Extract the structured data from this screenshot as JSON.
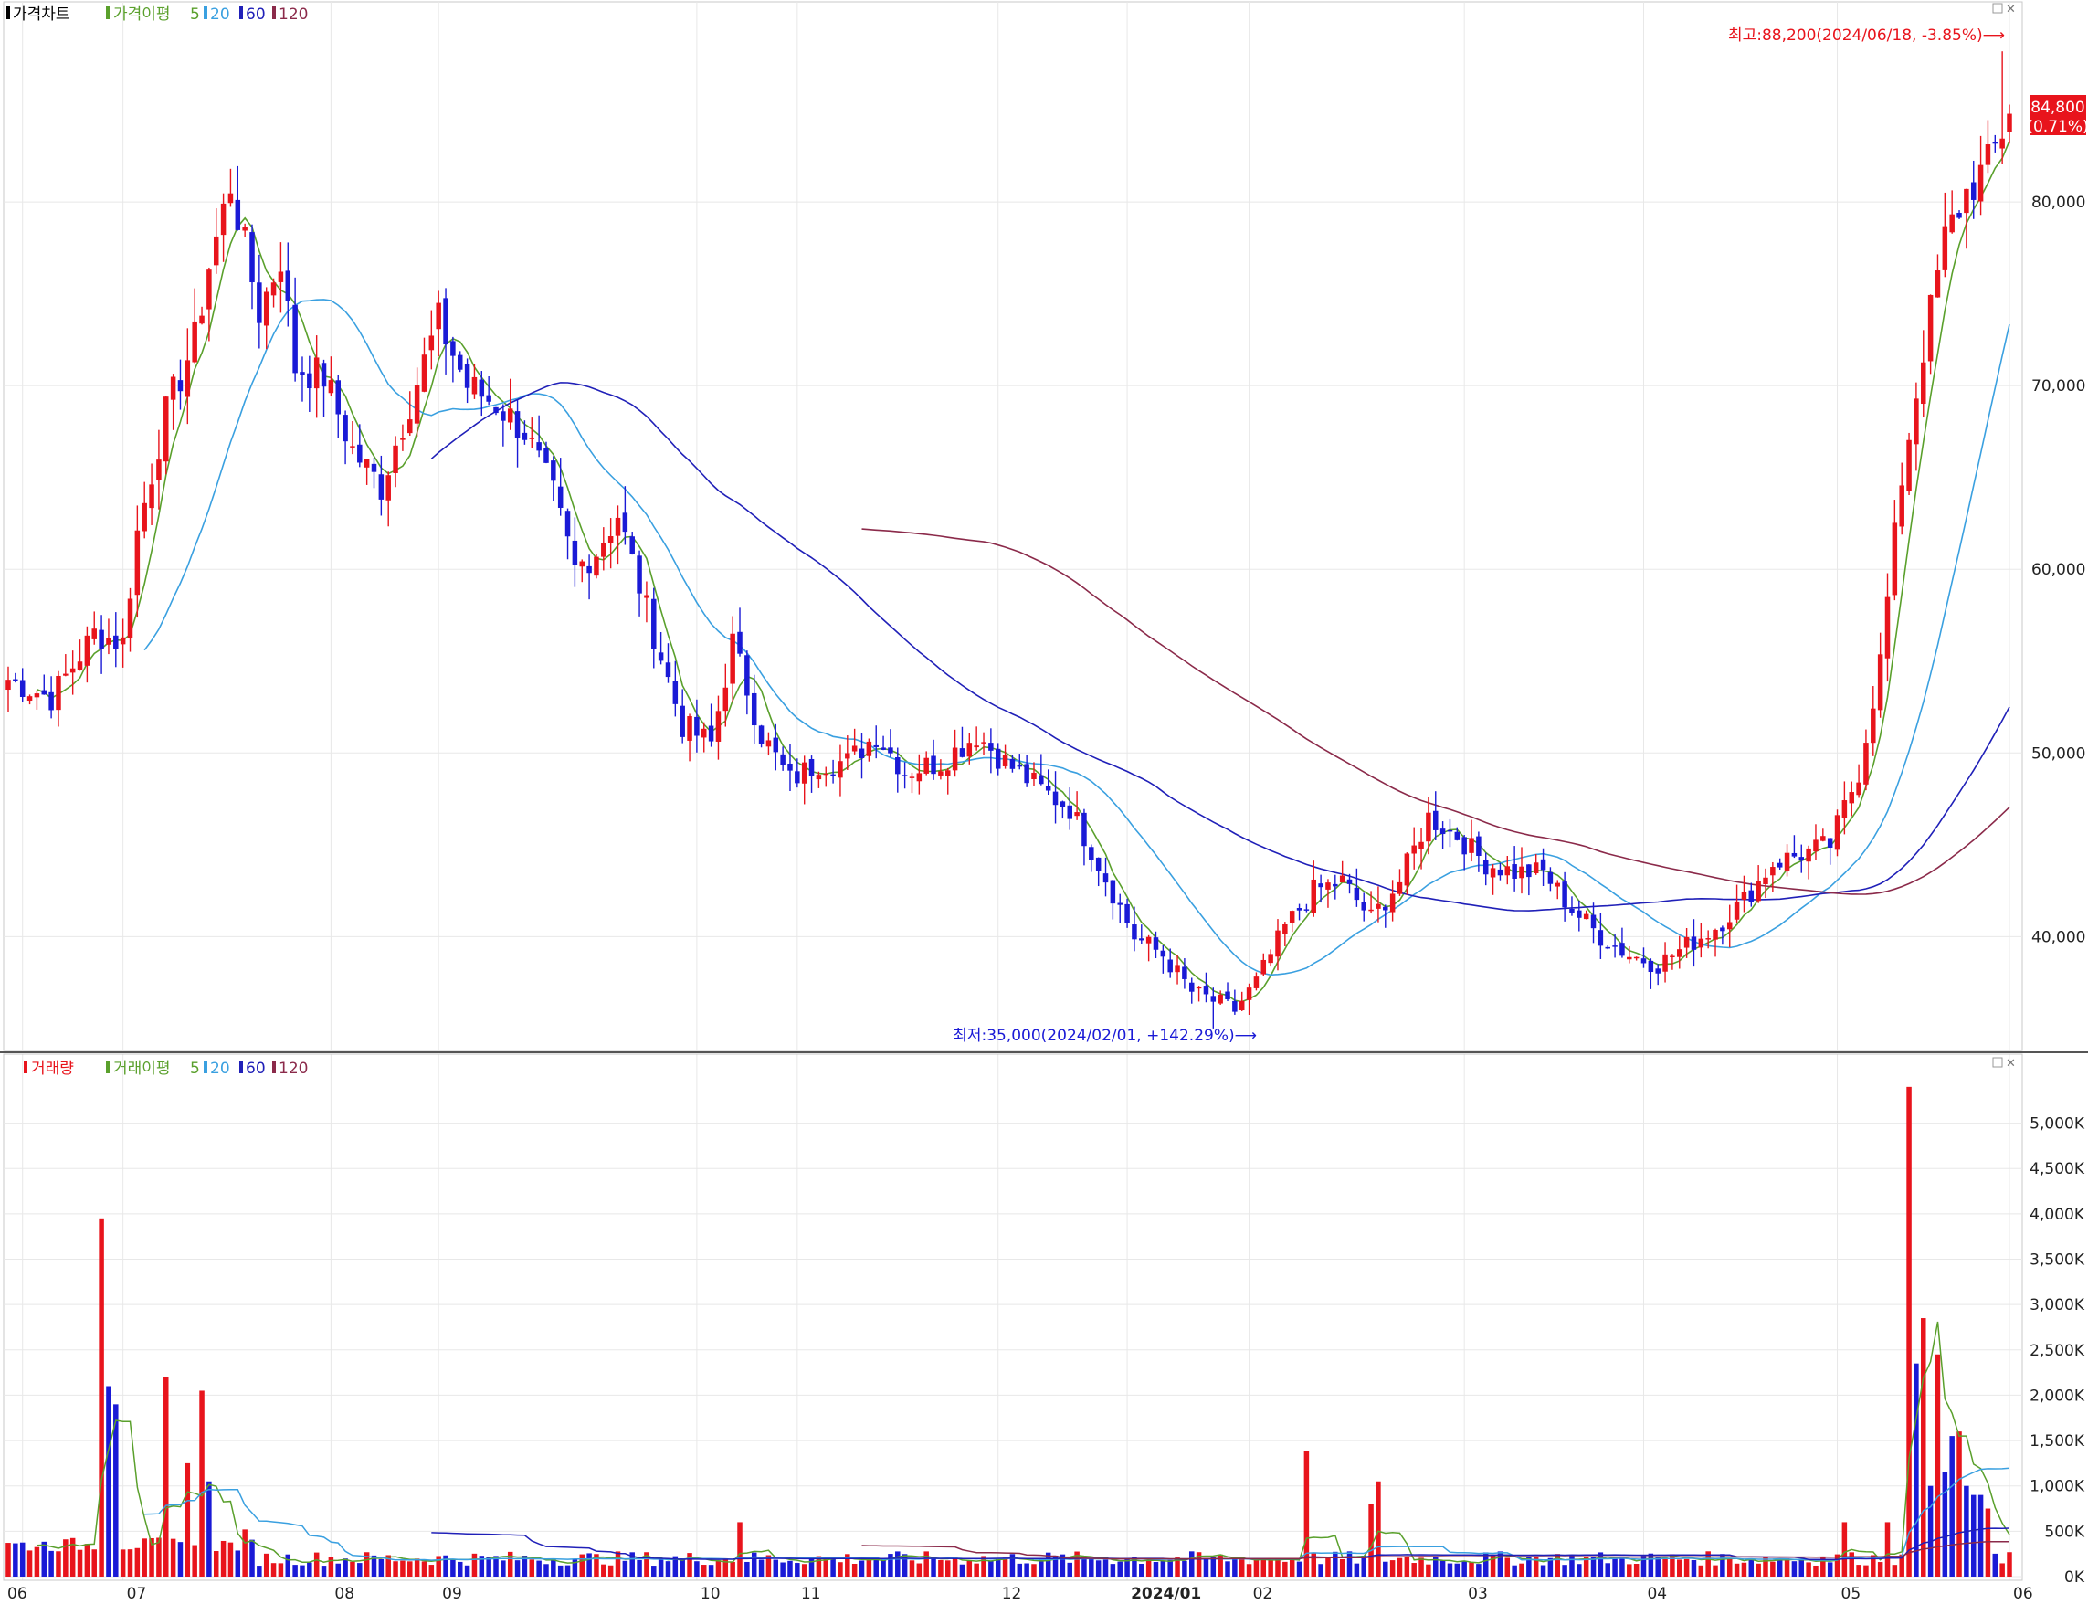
{
  "colors": {
    "up": "#e8141c",
    "down": "#1a1ad6",
    "ma5": "#5aa02c",
    "ma20": "#3aa0e0",
    "ma60": "#2020b8",
    "ma120": "#8b2a4a",
    "grid": "#e8e8e8",
    "annot_high": "#e8141c",
    "annot_low": "#1a1ad6"
  },
  "legend_price": {
    "title": "가격차트",
    "ma_label": "가격이평",
    "p5": "5",
    "p20": "20",
    "p60": "60",
    "p120": "120"
  },
  "legend_volume": {
    "title": "거래량",
    "ma_label": "거래이평",
    "p5": "5",
    "p20": "20",
    "p60": "60",
    "p120": "120"
  },
  "annotations": {
    "high": "최고:88,200(2024/06/18, -3.85%)⟶",
    "low": "최저:35,000(2024/02/01, +142.29%)⟶"
  },
  "last_price": {
    "value": "84,800",
    "change": "(0.71%)"
  },
  "chart_data": [
    {
      "type": "candlestick",
      "name": "price",
      "x_range": [
        "2023-06",
        "2024-06"
      ],
      "ylim": [
        34000,
        90000
      ],
      "y_ticks": [
        40000,
        50000,
        60000,
        70000,
        80000
      ],
      "y_tick_labels": [
        "40,000",
        "50,000",
        "60,000",
        "70,000",
        "80,000"
      ],
      "month_labels": [
        "06",
        "07",
        "08",
        "09",
        "10",
        "11",
        "12",
        "2024/01",
        "02",
        "03",
        "04",
        "05",
        "06"
      ],
      "high": {
        "value": 88200,
        "date": "2024-06-18"
      },
      "low": {
        "value": 35000,
        "date": "2024-02-01"
      },
      "last": 84800,
      "keypoints": [
        [
          0,
          54000
        ],
        [
          6,
          53000
        ],
        [
          12,
          56500
        ],
        [
          16,
          56000
        ],
        [
          18,
          62000
        ],
        [
          22,
          68500
        ],
        [
          26,
          72500
        ],
        [
          28,
          76500
        ],
        [
          31,
          81000
        ],
        [
          33,
          77500
        ],
        [
          35,
          74000
        ],
        [
          38,
          77000
        ],
        [
          40,
          71000
        ],
        [
          44,
          70500
        ],
        [
          48,
          66500
        ],
        [
          52,
          64500
        ],
        [
          55,
          68000
        ],
        [
          60,
          73500
        ],
        [
          64,
          70000
        ],
        [
          68,
          69000
        ],
        [
          72,
          67500
        ],
        [
          76,
          64000
        ],
        [
          79,
          60000
        ],
        [
          82,
          61000
        ],
        [
          85,
          63000
        ],
        [
          90,
          56500
        ],
        [
          94,
          51500
        ],
        [
          98,
          50500
        ],
        [
          101,
          56000
        ],
        [
          105,
          51000
        ],
        [
          109,
          48500
        ],
        [
          113,
          49500
        ],
        [
          117,
          49500
        ],
        [
          121,
          51000
        ],
        [
          125,
          49000
        ],
        [
          130,
          49500
        ],
        [
          135,
          51000
        ],
        [
          139,
          49500
        ],
        [
          144,
          48000
        ],
        [
          148,
          47000
        ],
        [
          152,
          44000
        ],
        [
          157,
          40000
        ],
        [
          161,
          39000
        ],
        [
          165,
          37000
        ],
        [
          168,
          36500
        ],
        [
          171,
          36000
        ],
        [
          174,
          37500
        ],
        [
          178,
          40500
        ],
        [
          182,
          42500
        ],
        [
          186,
          43000
        ],
        [
          190,
          41000
        ],
        [
          194,
          43000
        ],
        [
          198,
          46500
        ],
        [
          202,
          45500
        ],
        [
          206,
          44000
        ],
        [
          210,
          43500
        ],
        [
          214,
          43500
        ],
        [
          218,
          41500
        ],
        [
          222,
          40000
        ],
        [
          226,
          39000
        ],
        [
          230,
          38500
        ],
        [
          234,
          39500
        ],
        [
          238,
          40500
        ],
        [
          242,
          42000
        ],
        [
          246,
          44000
        ],
        [
          250,
          44500
        ],
        [
          254,
          45000
        ],
        [
          258,
          49000
        ],
        [
          261,
          55000
        ],
        [
          264,
          65000
        ],
        [
          267,
          72000
        ],
        [
          270,
          78000
        ],
        [
          273,
          80500
        ],
        [
          276,
          82000
        ],
        [
          279,
          84800
        ]
      ]
    },
    {
      "type": "bar",
      "name": "volume",
      "ylim": [
        0,
        5600
      ],
      "unit": "K",
      "y_ticks": [
        0,
        500,
        1000,
        1500,
        2000,
        2500,
        3000,
        3500,
        4000,
        4500,
        5000
      ],
      "y_tick_labels": [
        "0K",
        "500K",
        "1,000K",
        "1,500K",
        "2,000K",
        "2,500K",
        "3,000K",
        "3,500K",
        "4,000K",
        "4,500K",
        "5,000K"
      ],
      "spikes": [
        [
          13,
          3950,
          "up"
        ],
        [
          14,
          2100,
          "down"
        ],
        [
          15,
          1900,
          "down"
        ],
        [
          22,
          2200,
          "up"
        ],
        [
          25,
          1250,
          "up"
        ],
        [
          27,
          2050,
          "up"
        ],
        [
          28,
          1050,
          "down"
        ],
        [
          33,
          520,
          "up"
        ],
        [
          102,
          600,
          "up"
        ],
        [
          181,
          1380,
          "up"
        ],
        [
          190,
          800,
          "up"
        ],
        [
          191,
          1050,
          "up"
        ],
        [
          256,
          600,
          "up"
        ],
        [
          262,
          600,
          "up"
        ],
        [
          265,
          5400,
          "up"
        ],
        [
          266,
          2350,
          "down"
        ],
        [
          267,
          2850,
          "up"
        ],
        [
          268,
          1000,
          "down"
        ],
        [
          269,
          2450,
          "up"
        ],
        [
          270,
          1150,
          "down"
        ],
        [
          271,
          1550,
          "down"
        ],
        [
          272,
          1600,
          "up"
        ],
        [
          273,
          1000,
          "down"
        ],
        [
          274,
          900,
          "down"
        ],
        [
          275,
          900,
          "down"
        ],
        [
          276,
          750,
          "up"
        ]
      ]
    }
  ]
}
